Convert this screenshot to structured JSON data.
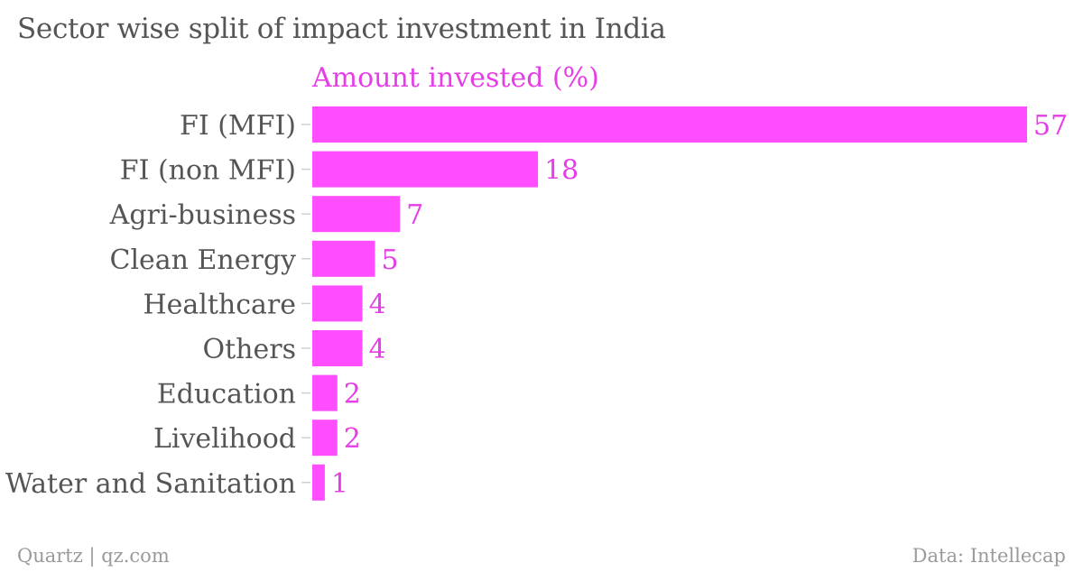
{
  "colors": {
    "bar": "#ff4dff",
    "value_label": "#e63de6",
    "category_label": "#555555",
    "title": "#555555",
    "footer": "#9a9a9a",
    "tick": "#d0d0d0"
  },
  "chart_data": {
    "type": "bar",
    "orientation": "horizontal",
    "title": "Sector wise split of impact investment in India",
    "series": [
      {
        "name": "Amount invested (%)",
        "values": [
          57,
          18,
          7,
          5,
          4,
          4,
          2,
          2,
          1
        ]
      }
    ],
    "categories": [
      "FI (MFI)",
      "FI (non MFI)",
      "Agri-business",
      "Clean Energy",
      "Healthcare",
      "Others",
      "Education",
      "Livelihood",
      "Water and Sanitation"
    ],
    "xlim": [
      0,
      57
    ],
    "grid": false,
    "legend_position": "top-left"
  },
  "footer": {
    "source_left": "Quartz | qz.com",
    "source_right": "Data: Intellecap"
  }
}
